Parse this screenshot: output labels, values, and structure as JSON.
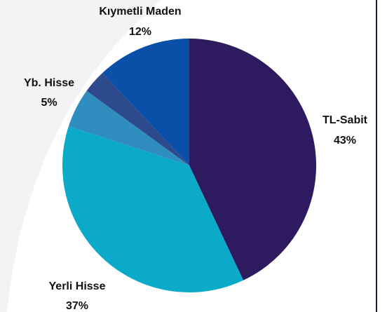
{
  "chart_data": {
    "type": "pie",
    "categories": [
      "TL-Sabit",
      "Yerli Hisse",
      "Yb. Hisse",
      null,
      "Kıymetli Maden"
    ],
    "values": [
      43,
      37,
      5,
      3,
      12
    ],
    "value_labels": [
      "43%",
      "37%",
      "5%",
      null,
      "12%"
    ],
    "colors": [
      "#2e1a5e",
      "#0aaac8",
      "#2f8dc0",
      "#2c4a8c",
      "#0a4fa8"
    ]
  }
}
